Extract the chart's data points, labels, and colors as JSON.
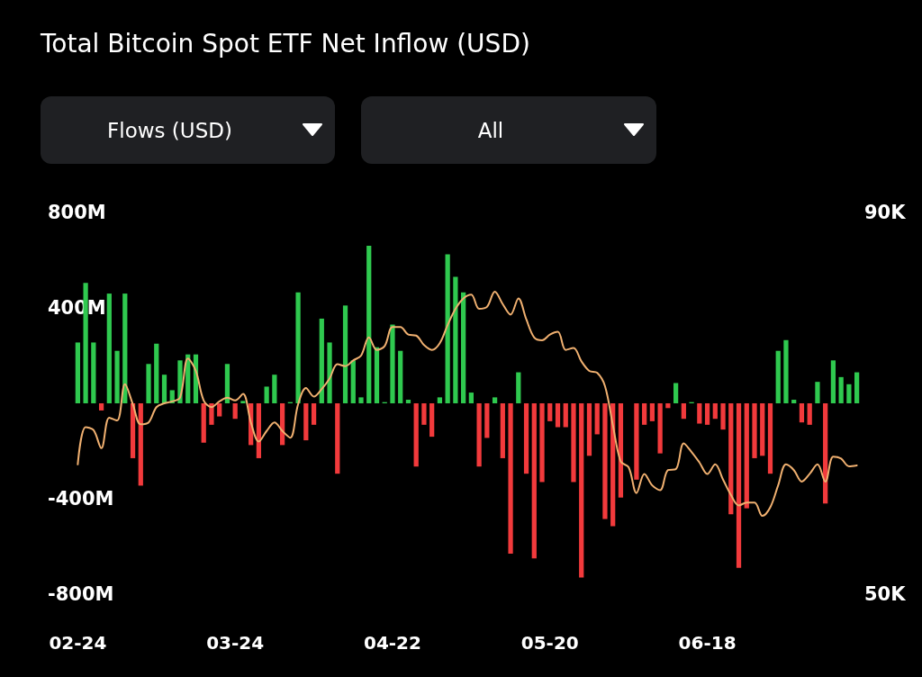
{
  "chart_data": {
    "type": "bar",
    "title": "Total Bitcoin Spot ETF Net Inflow (USD)",
    "annotations": [
      "Flows (USD)",
      "All"
    ],
    "categories": [
      "02-24",
      null,
      null,
      null,
      null,
      null,
      null,
      null,
      null,
      null,
      null,
      null,
      null,
      null,
      null,
      null,
      null,
      null,
      null,
      null,
      "03-24",
      null,
      null,
      null,
      null,
      null,
      null,
      null,
      null,
      null,
      null,
      null,
      null,
      null,
      null,
      null,
      null,
      null,
      null,
      null,
      "04-22",
      null,
      null,
      null,
      null,
      null,
      null,
      null,
      null,
      null,
      null,
      null,
      null,
      null,
      null,
      null,
      null,
      null,
      null,
      null,
      "05-20",
      null,
      null,
      null,
      null,
      null,
      null,
      null,
      null,
      null,
      null,
      null,
      null,
      null,
      null,
      null,
      null,
      null,
      null,
      null,
      "06-18",
      null,
      null,
      null,
      null,
      null,
      null,
      null,
      null,
      null,
      null,
      null,
      null,
      null,
      null,
      null,
      null,
      null,
      null,
      null
    ],
    "series": [
      {
        "values": [
          255,
          505,
          255,
          -30,
          460,
          220,
          460,
          -230,
          -345,
          165,
          250,
          120,
          55,
          180,
          205,
          205,
          -165,
          -90,
          -55,
          165,
          -65,
          10,
          -175,
          -230,
          70,
          120,
          -175,
          5,
          465,
          -155,
          -90,
          355,
          255,
          -295,
          410,
          180,
          25,
          660,
          235,
          5,
          330,
          220,
          15,
          -265,
          -90,
          -140,
          25,
          625,
          530,
          465,
          45,
          -265,
          -145,
          25,
          -230,
          -630,
          130,
          -295,
          -650,
          -330,
          -75,
          -100,
          -100,
          -330,
          -730,
          -220,
          -130,
          -485,
          -515,
          -395,
          0,
          -320,
          -90,
          -75,
          -210,
          -20,
          85,
          -65,
          5,
          -85,
          -90,
          -65,
          -110,
          -465,
          -690,
          -440,
          -230,
          -220,
          -295,
          220,
          265,
          15,
          -80,
          -90,
          90,
          -420,
          180,
          110,
          80,
          130
        ],
        "colors": [
          "#2fc94f",
          "#2fc94f",
          "#2fc94f",
          "#f23a3c",
          "#2fc94f",
          "#2fc94f",
          "#2fc94f",
          "#f23a3c",
          "#f23a3c",
          "#2fc94f",
          "#2fc94f",
          "#2fc94f",
          "#2fc94f",
          "#2fc94f",
          "#2fc94f",
          "#2fc94f",
          "#f23a3c",
          "#f23a3c",
          "#f23a3c",
          "#2fc94f",
          "#f23a3c",
          "#2fc94f",
          "#f23a3c",
          "#f23a3c",
          "#2fc94f",
          "#2fc94f",
          "#f23a3c",
          "#2fc94f",
          "#2fc94f",
          "#f23a3c",
          "#f23a3c",
          "#2fc94f",
          "#2fc94f",
          "#f23a3c",
          "#2fc94f",
          "#2fc94f",
          "#2fc94f",
          "#2fc94f",
          "#2fc94f",
          "#2fc94f",
          "#2fc94f",
          "#2fc94f",
          "#2fc94f",
          "#f23a3c",
          "#f23a3c",
          "#f23a3c",
          "#2fc94f",
          "#2fc94f",
          "#2fc94f",
          "#2fc94f",
          "#2fc94f",
          "#f23a3c",
          "#f23a3c",
          "#2fc94f",
          "#f23a3c",
          "#f23a3c",
          "#2fc94f",
          "#f23a3c",
          "#f23a3c",
          "#f23a3c",
          "#f23a3c",
          "#f23a3c",
          "#f23a3c",
          "#f23a3c",
          "#f23a3c",
          "#f23a3c",
          "#f23a3c",
          "#f23a3c",
          "#f23a3c",
          "#f23a3c",
          "#f23a3c",
          "#f23a3c",
          "#f23a3c",
          "#f23a3c",
          "#f23a3c",
          "#f23a3c",
          "#2fc94f",
          "#f23a3c",
          "#2fc94f",
          "#f23a3c",
          "#f23a3c",
          "#f23a3c",
          "#f23a3c",
          "#f23a3c",
          "#f23a3c",
          "#f23a3c",
          "#f23a3c",
          "#f23a3c",
          "#f23a3c",
          "#2fc94f",
          "#2fc94f",
          "#2fc94f",
          "#f23a3c",
          "#f23a3c",
          "#2fc94f",
          "#f23a3c",
          "#2fc94f",
          "#2fc94f",
          "#2fc94f",
          "#2fc94f"
        ]
      },
      {
        "type": "line",
        "axis": "y2",
        "color": "#f0b070",
        "values": [
          63.6,
          67.5,
          67.2,
          65.3,
          68.5,
          68.2,
          72.0,
          69.9,
          67.8,
          68.0,
          69.6,
          70.0,
          70.2,
          70.6,
          74.7,
          73.4,
          70.3,
          69.6,
          70.2,
          70.6,
          70.3,
          71.0,
          68.0,
          66.0,
          67.1,
          68.0,
          67.1,
          66.4,
          69.9,
          71.6,
          70.7,
          71.5,
          72.6,
          74.1,
          73.9,
          74.5,
          75.0,
          76.9,
          75.6,
          76.0,
          78.0,
          78.0,
          77.2,
          77.1,
          76.1,
          75.6,
          76.3,
          78.2,
          79.9,
          81.0,
          81.4,
          79.9,
          80.1,
          81.7,
          80.4,
          79.3,
          81.0,
          78.8,
          76.9,
          76.6,
          77.2,
          77.5,
          75.6,
          75.8,
          74.4,
          73.4,
          73.2,
          71.8,
          67.7,
          63.9,
          63.3,
          60.6,
          62.6,
          61.4,
          60.9,
          63.0,
          63.1,
          65.8,
          64.9,
          63.8,
          62.6,
          63.6,
          62.0,
          60.4,
          59.3,
          59.6,
          59.6,
          58.2,
          59.1,
          61.4,
          63.6,
          63.0,
          61.8,
          62.6,
          63.6,
          61.8,
          64.4,
          64.2,
          63.4,
          63.5
        ]
      }
    ],
    "ylim": [
      -800,
      800
    ],
    "yticks": [
      {
        "value": -800,
        "label": "-800M"
      },
      {
        "value": -400,
        "label": "-400M"
      },
      {
        "value": 400,
        "label": "400M"
      },
      {
        "value": 800,
        "label": "800M"
      }
    ],
    "y2lim": [
      50,
      90
    ],
    "y2ticks": [
      {
        "value": 50,
        "label": "50K"
      },
      {
        "value": 90,
        "label": "90K"
      }
    ],
    "marker": "none",
    "grid": false
  }
}
